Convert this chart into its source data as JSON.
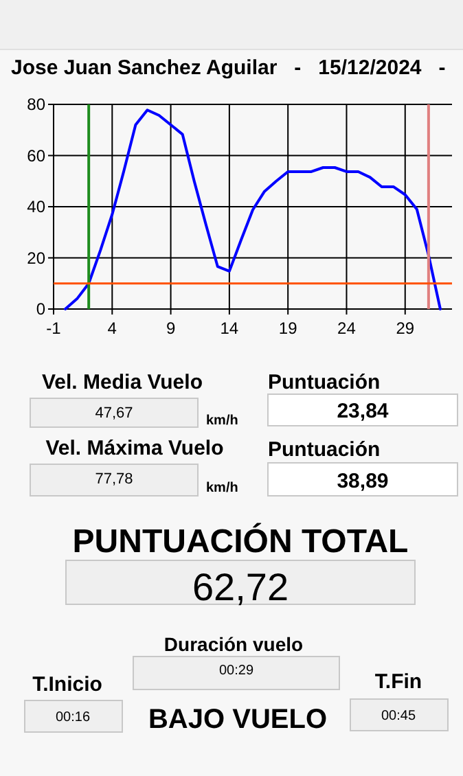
{
  "chart_data": [
    {
      "type": "line",
      "title": "Jose Juan Sanchez Aguilar   -   15/12/2024   -",
      "x": [
        0,
        1,
        2,
        3,
        4,
        5,
        6,
        7,
        8,
        9,
        10,
        11,
        12,
        13,
        14,
        15,
        16,
        17,
        18,
        19,
        20,
        21,
        22,
        23,
        24,
        25,
        26,
        27,
        28,
        29,
        30,
        31,
        32
      ],
      "series": [
        {
          "color": "#0000ff",
          "values": [
            0,
            4,
            10,
            23,
            37,
            54,
            72,
            77.8,
            75.7,
            72,
            68.3,
            50,
            33,
            16.6,
            14.8,
            27,
            38.8,
            46,
            50,
            53.7,
            53.7,
            53.7,
            55.3,
            55.3,
            53.7,
            53.7,
            51.5,
            47.8,
            47.8,
            44.7,
            39,
            21,
            0
          ]
        }
      ],
      "xlim": [
        -1,
        33
      ],
      "ylim": [
        0,
        80
      ],
      "xticks": [
        -1,
        4,
        9,
        14,
        19,
        24,
        29
      ],
      "yticks": [
        0,
        20,
        40,
        60,
        80
      ],
      "grid": true,
      "marker": "none",
      "line_style": "solid",
      "ref_lines": [
        {
          "axis": "x",
          "value": 2,
          "color": "#1e8c1e"
        },
        {
          "axis": "x",
          "value": 31,
          "color": "#e08080"
        },
        {
          "axis": "y",
          "value": 10,
          "color": "#ff5000"
        }
      ]
    },
    {
      "type": "other",
      "annotations": [
        "Vel. Media Vuelo",
        "47,67",
        "km/h",
        "Puntuación",
        "23,84",
        "Vel. Máxima Vuelo",
        "77,78",
        "km/h",
        "Puntuación",
        "38,89",
        "PUNTUACIÓN TOTAL",
        "62,72",
        "Duración vuelo",
        "00:29",
        "T.Inicio",
        "00:16",
        "BAJO VUELO",
        "T.Fin",
        "00:45"
      ]
    }
  ]
}
